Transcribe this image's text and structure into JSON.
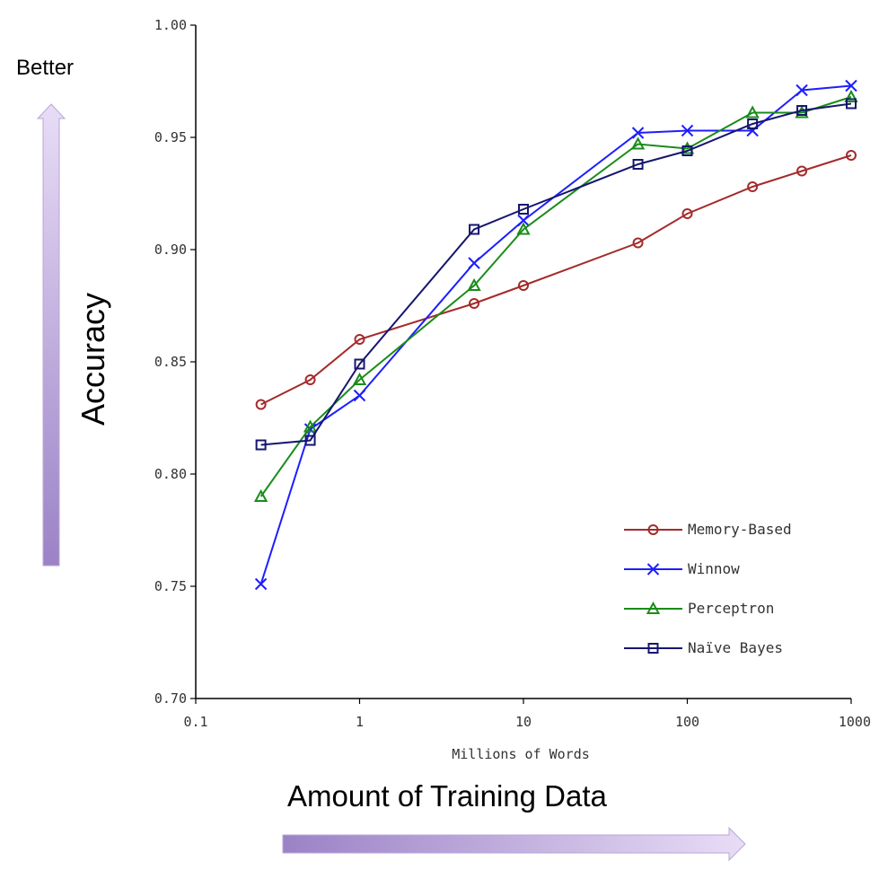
{
  "annotations": {
    "better": "Better",
    "accuracy": "Accuracy",
    "amount": "Amount of Training Data",
    "arrow_color": "#9b82c6"
  },
  "chart_data": {
    "type": "line",
    "xscale": "log",
    "xlabel": "Millions of Words",
    "ylabel": "",
    "xlim": [
      0.1,
      1000
    ],
    "ylim": [
      0.7,
      1.0
    ],
    "xticks": [
      0.1,
      1,
      10,
      100,
      1000
    ],
    "xtick_labels": [
      "0.1",
      "1",
      "10",
      "100",
      "1000"
    ],
    "yticks": [
      0.7,
      0.75,
      0.8,
      0.85,
      0.9,
      0.95,
      1.0
    ],
    "ytick_labels": [
      "0.70",
      "0.75",
      "0.80",
      "0.85",
      "0.90",
      "0.95",
      "1.00"
    ],
    "grid": false,
    "legend_position": "bottom-right",
    "x": [
      0.25,
      0.5,
      1,
      5,
      10,
      50,
      100,
      250,
      500,
      1000
    ],
    "series": [
      {
        "name": "Memory-Based",
        "color": "#a52a2a",
        "marker": "circle",
        "values": [
          0.831,
          0.842,
          0.86,
          0.876,
          0.884,
          0.903,
          0.916,
          0.928,
          0.935,
          0.942
        ]
      },
      {
        "name": "Winnow",
        "color": "#1e1eff",
        "marker": "x",
        "values": [
          0.751,
          0.82,
          0.835,
          0.894,
          0.913,
          0.952,
          0.953,
          0.953,
          0.971,
          0.973
        ]
      },
      {
        "name": "Perceptron",
        "color": "#1a8c1a",
        "marker": "triangle",
        "values": [
          0.79,
          0.821,
          0.842,
          0.884,
          0.909,
          0.947,
          0.945,
          0.961,
          0.961,
          0.968
        ]
      },
      {
        "name": "Naïve Bayes",
        "color": "#16166e",
        "marker": "square",
        "values": [
          0.813,
          0.815,
          0.849,
          0.909,
          0.918,
          0.938,
          0.944,
          0.956,
          0.962,
          0.965
        ]
      }
    ]
  }
}
